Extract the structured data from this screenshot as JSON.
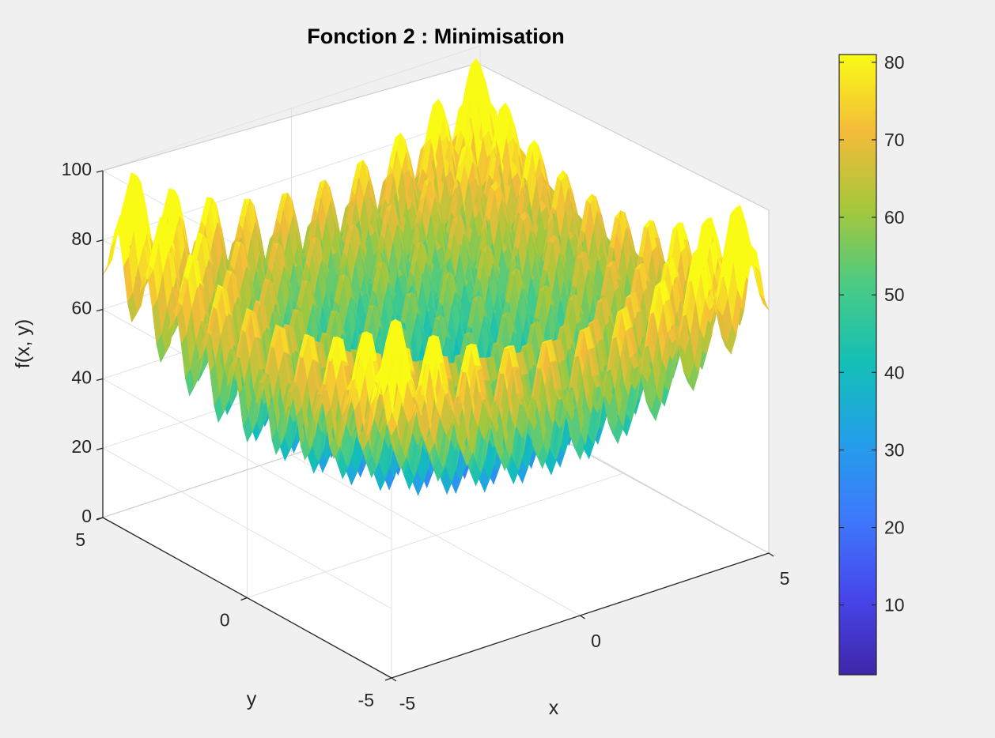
{
  "chart_data": {
    "type": "surface",
    "title": "Fonction 2 : Minimisation",
    "function": "x^2 + y^2 + 20 + 10*sin(...)",
    "xlabel": "x",
    "ylabel": "y",
    "zlabel": "f(x, y)",
    "x_ticks": [
      "-5",
      "0",
      "5"
    ],
    "y_ticks": [
      "-5",
      "0",
      "5"
    ],
    "z_ticks": [
      "0",
      "20",
      "40",
      "60",
      "80",
      "100"
    ],
    "xlim": [
      -5,
      5
    ],
    "ylim": [
      -5,
      5
    ],
    "zlim": [
      0,
      100
    ],
    "z_range_shown": [
      1,
      81
    ],
    "colorbar": {
      "colormap": "parula",
      "range": [
        1,
        81
      ],
      "ticks": [
        "10",
        "20",
        "30",
        "40",
        "50",
        "60",
        "70",
        "80"
      ]
    },
    "grid": true
  }
}
